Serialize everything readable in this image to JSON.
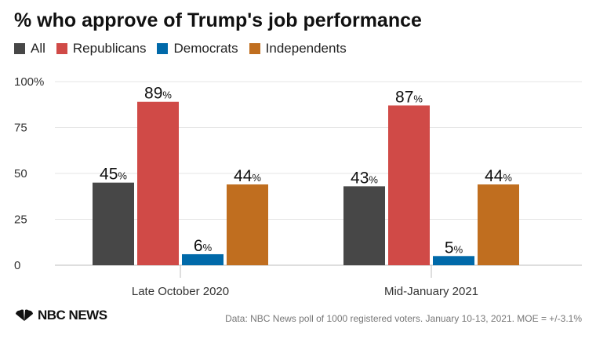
{
  "chart_data": {
    "type": "bar",
    "title": "% who approve of Trump's job performance",
    "categories": [
      "Late October 2020",
      "Mid-January 2021"
    ],
    "series": [
      {
        "name": "All",
        "color": "#474747",
        "values": [
          45,
          43
        ]
      },
      {
        "name": "Republicans",
        "color": "#d04a47",
        "values": [
          89,
          87
        ]
      },
      {
        "name": "Democrats",
        "color": "#0069a9",
        "values": [
          6,
          5
        ]
      },
      {
        "name": "Independents",
        "color": "#c06e1f",
        "values": [
          44,
          44
        ]
      }
    ],
    "ylim": [
      0,
      100
    ],
    "yticks": [
      0,
      25,
      50,
      75,
      100
    ],
    "ytick_labels": [
      "0",
      "25",
      "50",
      "75",
      "100%"
    ],
    "value_suffix": "%",
    "grid": true,
    "legend_position": "top-left"
  },
  "footer": {
    "logo": "NBC NEWS",
    "source": "Data: NBC News poll of 1000 registered voters. January 10-13, 2021. MOE = +/-3.1%"
  }
}
